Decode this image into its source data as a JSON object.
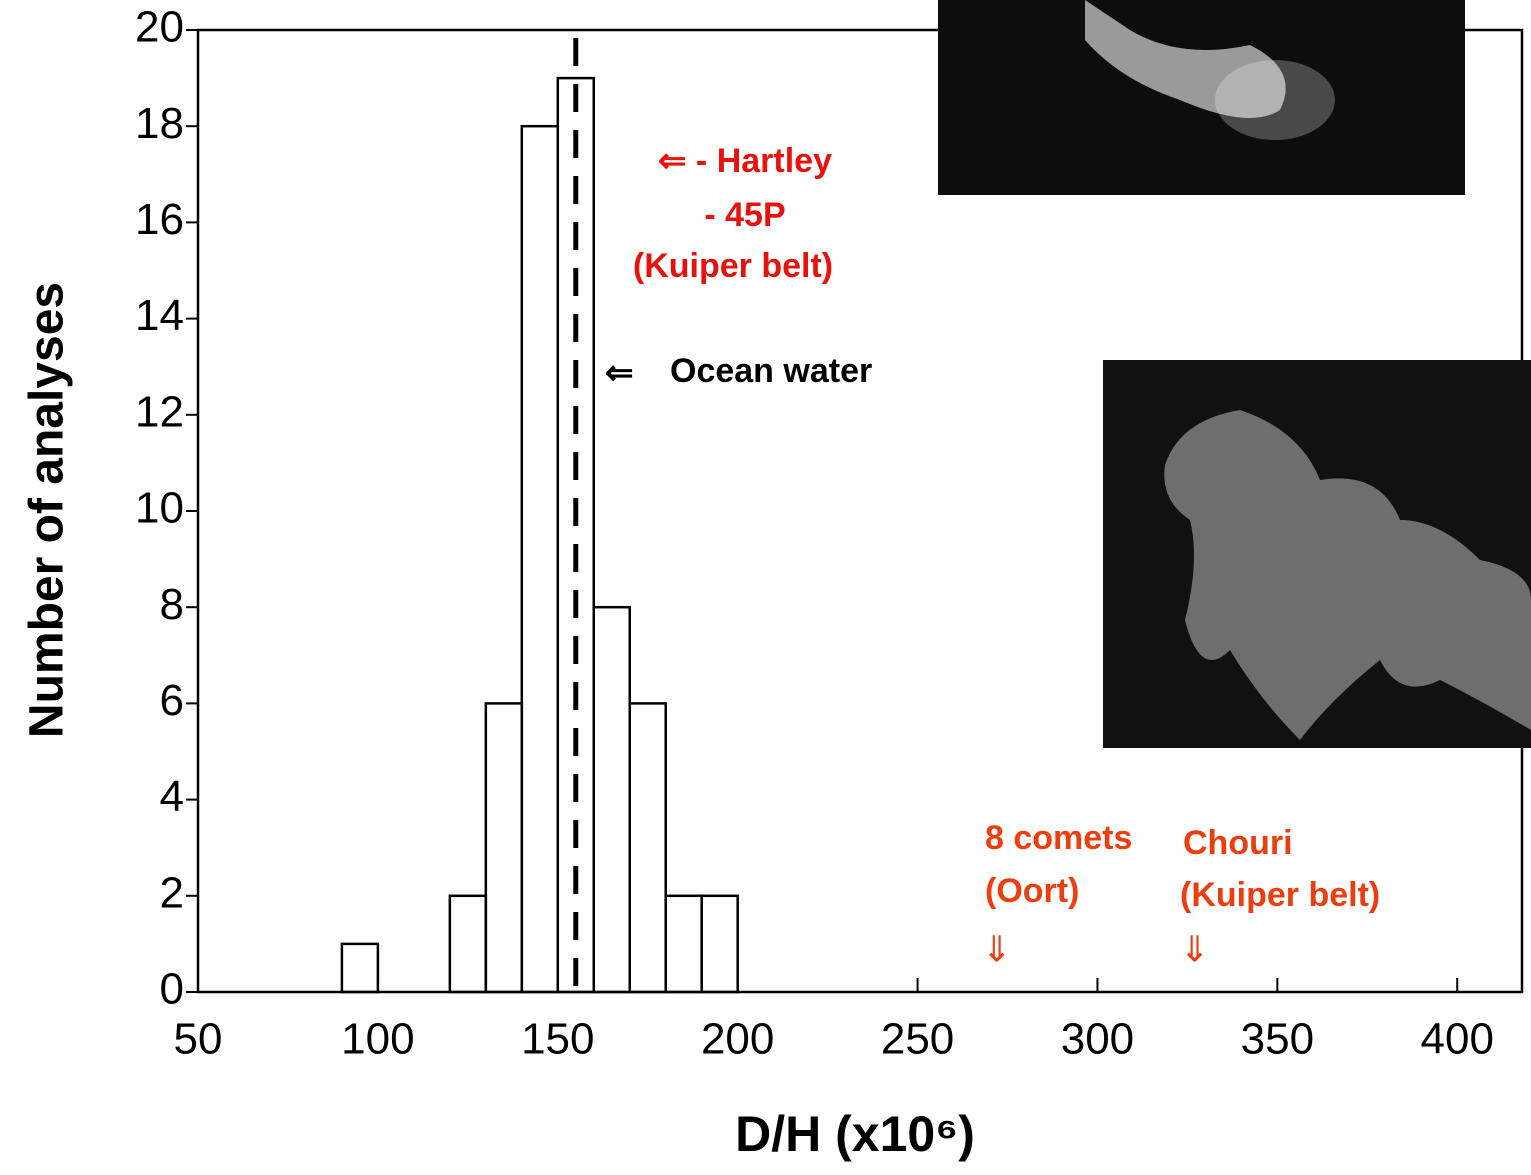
{
  "chart_data": {
    "type": "histogram",
    "bins": [
      90,
      100,
      110,
      120,
      130,
      140,
      150,
      160,
      170,
      180,
      190,
      200
    ],
    "values": [
      1,
      0,
      0,
      2,
      6,
      18,
      19,
      8,
      6,
      2,
      2
    ],
    "color": "#000000",
    "xlim": [
      50,
      418
    ],
    "ylim": [
      0,
      20
    ],
    "xticks": [
      50,
      100,
      150,
      200,
      250,
      300,
      350,
      400
    ],
    "yticks": [
      0,
      2,
      4,
      6,
      8,
      10,
      12,
      14,
      16,
      18,
      20
    ],
    "x_label": "D/H (x10⁶)",
    "y_label": "Number of analyses",
    "reference_line": {
      "x": 155,
      "style": "dashed"
    },
    "annotations": [
      {
        "text": "⇐ - Hartley",
        "color": "#e8120c"
      },
      {
        "text": "- 45P",
        "color": "#e8120c"
      },
      {
        "text": "(Kuiper belt)",
        "color": "#e8120c"
      },
      {
        "text": "⇐",
        "color": "#000000"
      },
      {
        "text": "Ocean water",
        "color": "#000000"
      },
      {
        "text": "8 comets",
        "color": "#ee3d0e"
      },
      {
        "text": "(Oort)",
        "color": "#ee3d0e"
      },
      {
        "text": "Chouri",
        "color": "#ee3d0e"
      },
      {
        "text": "(Kuiper belt)",
        "color": "#ee3d0e"
      }
    ],
    "markers": [
      {
        "text": "⇓",
        "x": 272,
        "color": "#ee3d0e"
      },
      {
        "text": "⇓",
        "x": 327,
        "color": "#ee3d0e"
      }
    ]
  }
}
